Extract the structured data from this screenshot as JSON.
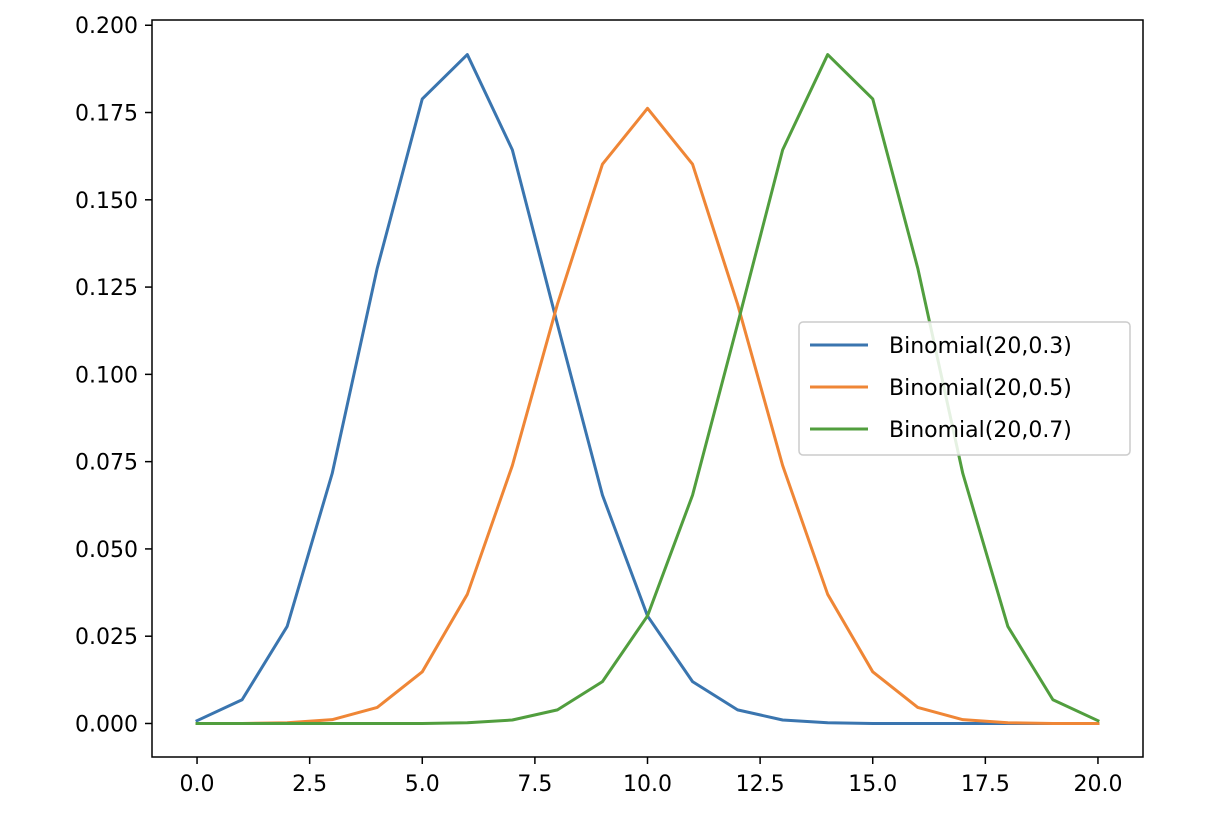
{
  "chart_data": {
    "type": "line",
    "title": "",
    "xlabel": "",
    "ylabel": "",
    "xlim": [
      -1,
      21
    ],
    "ylim": [
      -0.0096,
      0.2015
    ],
    "xticks": [
      0.0,
      2.5,
      5.0,
      7.5,
      10.0,
      12.5,
      15.0,
      17.5,
      20.0
    ],
    "xtick_labels": [
      "0.0",
      "2.5",
      "5.0",
      "7.5",
      "10.0",
      "12.5",
      "15.0",
      "17.5",
      "20.0"
    ],
    "yticks": [
      0.0,
      0.025,
      0.05,
      0.075,
      0.1,
      0.125,
      0.15,
      0.175,
      0.2
    ],
    "ytick_labels": [
      "0.000",
      "0.025",
      "0.050",
      "0.075",
      "0.100",
      "0.125",
      "0.150",
      "0.175",
      "0.200"
    ],
    "grid": false,
    "legend_position": "center-right",
    "x": [
      0,
      1,
      2,
      3,
      4,
      5,
      6,
      7,
      8,
      9,
      10,
      11,
      12,
      13,
      14,
      15,
      16,
      17,
      18,
      19,
      20
    ],
    "series": [
      {
        "name": "Binomial(20,0.3)",
        "color": "#3a75af",
        "values": [
          0.0008,
          0.0068,
          0.0278,
          0.0716,
          0.1304,
          0.1789,
          0.1916,
          0.1643,
          0.1144,
          0.0654,
          0.0308,
          0.012,
          0.0039,
          0.001,
          0.0002,
          0.0,
          0.0,
          0.0,
          0.0,
          0.0,
          0.0
        ]
      },
      {
        "name": "Binomial(20,0.5)",
        "color": "#ef8636",
        "values": [
          0.0,
          0.0,
          0.0002,
          0.0011,
          0.0046,
          0.0148,
          0.037,
          0.0739,
          0.1201,
          0.1602,
          0.1762,
          0.1602,
          0.1201,
          0.0739,
          0.037,
          0.0148,
          0.0046,
          0.0011,
          0.0002,
          0.0,
          0.0
        ]
      },
      {
        "name": "Binomial(20,0.7)",
        "color": "#519e3e",
        "values": [
          0.0,
          0.0,
          0.0,
          0.0,
          0.0,
          0.0,
          0.0002,
          0.001,
          0.0039,
          0.012,
          0.0308,
          0.0654,
          0.1144,
          0.1643,
          0.1916,
          0.1789,
          0.1304,
          0.0716,
          0.0278,
          0.0068,
          0.0008
        ]
      }
    ]
  }
}
